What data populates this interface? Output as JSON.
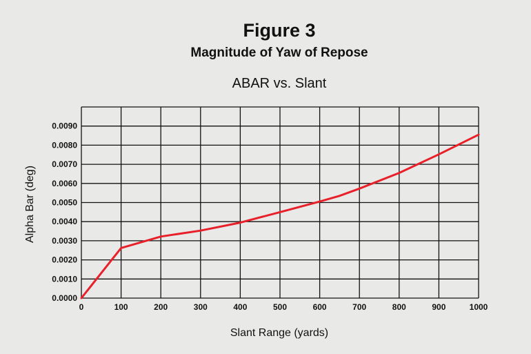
{
  "figure": {
    "label": "Figure 3",
    "title": "Magnitude of Yaw of Repose"
  },
  "chart_data": {
    "type": "line",
    "title": "ABAR vs. Slant",
    "xlabel": "Slant Range (yards)",
    "ylabel": "Alpha Bar (deg)",
    "xlim": [
      0,
      1000
    ],
    "ylim": [
      0,
      0.01
    ],
    "x_ticks": [
      "0",
      "100",
      "200",
      "300",
      "400",
      "500",
      "600",
      "700",
      "800",
      "900",
      "1000"
    ],
    "y_ticks": [
      "0.0000",
      "0.0010",
      "0.0020",
      "0.0030",
      "0.0040",
      "0.0050",
      "0.0060",
      "0.0070",
      "0.0080",
      "0.0090"
    ],
    "grid": true,
    "series": [
      {
        "color": "#e8202a",
        "x": [
          0,
          100,
          200,
          300,
          400,
          500,
          600,
          650,
          700,
          800,
          900,
          1000
        ],
        "y": [
          0.0,
          0.00262,
          0.00322,
          0.00353,
          0.00395,
          0.0045,
          0.00505,
          0.00535,
          0.00573,
          0.00655,
          0.00752,
          0.00855
        ]
      }
    ]
  }
}
